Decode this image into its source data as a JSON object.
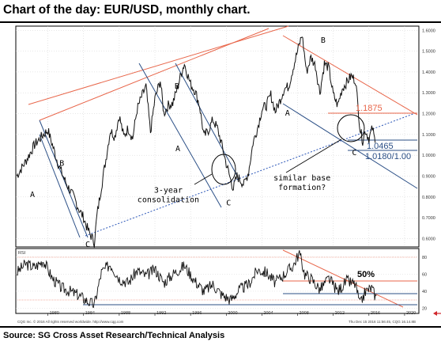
{
  "header": {
    "title": "Chart of the day: EUR/USD, monthly chart."
  },
  "footer": {
    "source": "Source: SG Cross Asset Research/Technical Analysis",
    "copyright": "CQG Inc. © 2016 All rights reserved worldwide. http://www.cqg.com",
    "timestamp": "Thu Dec 15 2016 11:56:45, CQG 16.14.8B"
  },
  "colors": {
    "price": "#111111",
    "channel": "#2b4f86",
    "resistance": "#e8664a",
    "support_dotted": "#2b56b8",
    "rsi_band": "#e8664a"
  },
  "chart_data": [
    {
      "type": "line",
      "title": "",
      "x_ticks": [
        "1980",
        "1984",
        "1988",
        "1992",
        "1996",
        "2000",
        "2004",
        "2008",
        "2012",
        "2016",
        "2020"
      ],
      "y_ticks": [
        "1.6000",
        "1.5000",
        "1.4000",
        "1.3000",
        "1.2000",
        "1.1000",
        "1.0000",
        "0.9000",
        "0.8000",
        "0.7000",
        "0.6000"
      ],
      "ylim": [
        0.56,
        1.62
      ],
      "xlim": [
        1976.4,
        2021.6
      ],
      "series": [
        {
          "x": [
            1976.5,
            1977.5,
            1978.5,
            1979.5,
            1980.0,
            1980.5,
            1981.0,
            1981.5,
            1982.0,
            1982.5,
            1983.0,
            1983.5,
            1984.0,
            1984.5,
            1985.0,
            1985.2,
            1985.5,
            1986.0,
            1986.5,
            1987.0,
            1987.5,
            1988.0,
            1988.5,
            1989.0,
            1989.5,
            1990.0,
            1990.5,
            1991.0,
            1991.5,
            1992.0,
            1992.6,
            1993.0,
            1993.5,
            1994.0,
            1994.5,
            1995.0,
            1995.3,
            1996.0,
            1996.5,
            1997.0,
            1997.5,
            1998.0,
            1998.5,
            1999.0,
            1999.5,
            2000.0,
            2000.5,
            2000.8,
            2001.2,
            2001.6,
            2002.0,
            2002.5,
            2003.0,
            2003.5,
            2004.0,
            2004.5,
            2005.0,
            2005.5,
            2006.0,
            2006.5,
            2007.0,
            2007.5,
            2008.0,
            2008.5,
            2009.0,
            2009.5,
            2010.0,
            2010.5,
            2011.0,
            2011.5,
            2012.0,
            2012.5,
            2013.0,
            2013.5,
            2014.0,
            2014.5,
            2015.0,
            2015.3,
            2015.6,
            2016.0,
            2016.4,
            2016.7
          ],
          "y": [
            0.9,
            0.97,
            1.05,
            1.1,
            1.12,
            1.05,
            0.98,
            0.92,
            0.87,
            0.83,
            0.79,
            0.74,
            0.7,
            0.64,
            0.6,
            0.58,
            0.71,
            0.85,
            0.98,
            1.12,
            1.09,
            1.19,
            1.09,
            1.13,
            1.08,
            1.22,
            1.28,
            1.33,
            1.11,
            1.27,
            1.36,
            1.2,
            1.24,
            1.25,
            1.32,
            1.4,
            1.44,
            1.34,
            1.31,
            1.24,
            1.09,
            1.12,
            1.17,
            1.13,
            1.05,
            0.96,
            0.88,
            0.84,
            0.9,
            0.88,
            0.86,
            0.92,
            1.06,
            1.13,
            1.22,
            1.24,
            1.29,
            1.21,
            1.26,
            1.32,
            1.33,
            1.42,
            1.5,
            1.58,
            1.4,
            1.47,
            1.43,
            1.3,
            1.44,
            1.42,
            1.29,
            1.24,
            1.32,
            1.35,
            1.38,
            1.36,
            1.13,
            1.07,
            1.12,
            1.08,
            1.13,
            1.06
          ]
        }
      ],
      "annotations": [
        {
          "text": "A",
          "x": 1978.0,
          "y": 0.8
        },
        {
          "text": "B",
          "x": 1981.3,
          "y": 0.95
        },
        {
          "text": "C",
          "x": 1984.2,
          "y": 0.56
        },
        {
          "text": "B",
          "x": 1994.2,
          "y": 1.32
        },
        {
          "text": "A",
          "x": 1994.3,
          "y": 1.02
        },
        {
          "text": "C",
          "x": 2000.0,
          "y": 0.76
        },
        {
          "text": "B",
          "x": 2010.6,
          "y": 1.54
        },
        {
          "text": "A",
          "x": 2006.6,
          "y": 1.19
        },
        {
          "text": "C",
          "x": 2014.1,
          "y": 1.0
        },
        {
          "text": "3-year\nconsolidation",
          "x": 1993.5,
          "y": 0.82
        },
        {
          "text": "similar base\nformation?",
          "x": 2008.5,
          "y": 0.88
        }
      ],
      "levels": [
        {
          "text": "1.1875",
          "value": 1.1875
        },
        {
          "text": "1.0465",
          "value": 1.0465
        },
        {
          "text": "1.0180/1.00",
          "value": 1.018
        }
      ],
      "grid": true
    },
    {
      "type": "line",
      "title": "RSI",
      "y_ticks": [
        "80",
        "60",
        "40",
        "20"
      ],
      "ylim": [
        14,
        90
      ],
      "xlim": [
        1976.4,
        2021.6
      ],
      "series": [
        {
          "x": [
            1976.5,
            1977.5,
            1978.5,
            1979.5,
            1980.5,
            1981.5,
            1982.5,
            1983.5,
            1984.5,
            1985.2,
            1986.0,
            1987.0,
            1988.0,
            1989.0,
            1990.0,
            1991.0,
            1992.0,
            1993.0,
            1994.0,
            1995.3,
            1996.5,
            1997.5,
            1998.5,
            1999.5,
            2000.5,
            2001.5,
            2002.5,
            2003.5,
            2004.5,
            2005.5,
            2006.5,
            2007.5,
            2008.2,
            2008.8,
            2009.5,
            2010.5,
            2011.5,
            2012.5,
            2013.5,
            2014.5,
            2015.0,
            2015.6,
            2016.3,
            2016.9
          ],
          "y": [
            62,
            72,
            68,
            76,
            55,
            44,
            40,
            35,
            28,
            24,
            62,
            72,
            55,
            50,
            64,
            58,
            66,
            50,
            60,
            70,
            52,
            40,
            48,
            36,
            30,
            42,
            48,
            65,
            62,
            50,
            60,
            70,
            85,
            60,
            55,
            42,
            55,
            40,
            52,
            48,
            24,
            40,
            44,
            30
          ]
        }
      ],
      "levels": [
        {
          "text": "50%",
          "value": 50
        }
      ],
      "grid": true
    }
  ]
}
